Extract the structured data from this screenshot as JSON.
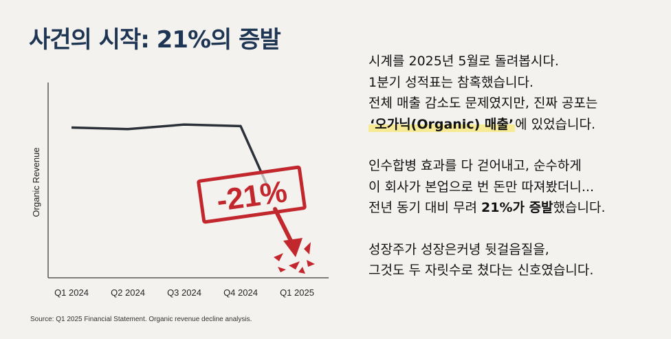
{
  "title": "사건의 시작: 21%의 증발",
  "chart_data": {
    "type": "line",
    "categories": [
      "Q1 2024",
      "Q2 2024",
      "Q3 2024",
      "Q4 2024",
      "Q1 2025"
    ],
    "values": [
      100,
      99.5,
      101,
      100.5,
      79
    ],
    "ylabel": "Organic Revenue",
    "xlabel": "",
    "ylim": [
      50,
      115
    ],
    "grid": false,
    "annotation": "-21%",
    "colors": {
      "line": "#2b3138",
      "stamp": "#c2272d",
      "axis": "#555555"
    }
  },
  "source": "Source: Q1 2025 Financial Statement. Organic revenue decline analysis.",
  "narrative": {
    "p1": {
      "l1": "시계를 2025년 5월로 돌려봅시다.",
      "l2": "1분기 성적표는 참혹했습니다.",
      "l3": "전체 매출 감소도 문제였지만, 진짜 공포는",
      "l4_highlight": "‘오가닉(Organic) 매출’",
      "l4_rest": "에 있었습니다."
    },
    "p2": {
      "l1": "인수합병 효과를 다 걷어내고, 순수하게",
      "l2": "이 회사가 본업으로 번 돈만 따져봤더니...",
      "l3_pre": "전년 동기 대비 무려 ",
      "l3_bold": "21%가 증발",
      "l3_post": "했습니다."
    },
    "p3": {
      "l1": "성장주가 성장은커녕 뒷걸음질을,",
      "l2": "그것도 두 자릿수로 쳤다는 신호였습니다."
    }
  }
}
